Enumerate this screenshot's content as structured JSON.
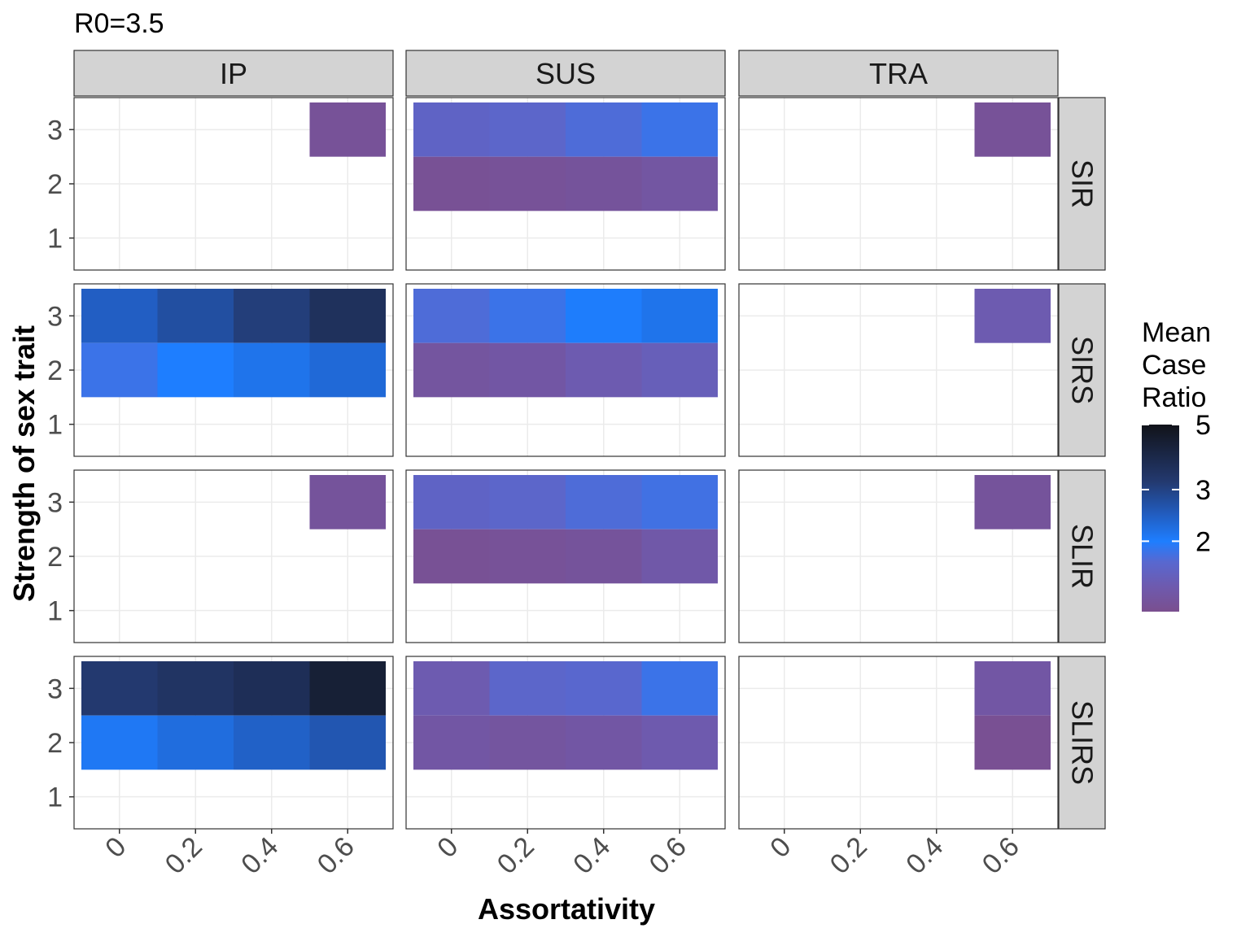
{
  "chart_data": {
    "type": "heatmap",
    "title": "R0=3.5",
    "xlabel": "Assortativity",
    "ylabel": "Strength of sex trait",
    "x_ticks": [
      "0",
      "0.2",
      "0.4",
      "0.6"
    ],
    "y_ticks": [
      "1",
      "2",
      "3"
    ],
    "x_values": [
      0,
      0.2,
      0.4,
      0.6
    ],
    "y_values": [
      1,
      2,
      3
    ],
    "col_facets": [
      "IP",
      "SUS",
      "TRA"
    ],
    "row_facets": [
      "SIR",
      "SIRS",
      "SLIR",
      "SLIRS"
    ],
    "legend": {
      "title": "Mean Case Ratio",
      "title_lines": [
        "Mean",
        "Case",
        "Ratio"
      ],
      "tick_labels": [
        "5",
        "3",
        "2"
      ],
      "tick_values": [
        5,
        3,
        2
      ],
      "range": [
        1.15,
        5
      ],
      "colors": [
        "#7a4f8f",
        "#6e5aae",
        "#5868d0",
        "#1e7eff",
        "#225bbc",
        "#23396f",
        "#111319"
      ],
      "color_stops": [
        1.15,
        1.4,
        1.7,
        2.0,
        2.5,
        3.2,
        5.0
      ]
    },
    "cells": {
      "IP": {
        "SIR": [
          [
            0.6,
            3,
            1.22
          ]
        ],
        "SIRS": [
          [
            0,
            3,
            2.45
          ],
          [
            0.2,
            3,
            2.75
          ],
          [
            0.4,
            3,
            3.1
          ],
          [
            0.6,
            3,
            3.6
          ],
          [
            0,
            2,
            1.85
          ],
          [
            0.2,
            2,
            2.0
          ],
          [
            0.4,
            2,
            2.15
          ],
          [
            0.6,
            2,
            2.3
          ]
        ],
        "SLIR": [
          [
            0.6,
            3,
            1.25
          ]
        ],
        "SLIRS": [
          [
            0,
            3,
            3.2
          ],
          [
            0.2,
            3,
            3.45
          ],
          [
            0.4,
            3,
            3.7
          ],
          [
            0.6,
            3,
            4.4
          ],
          [
            0,
            2,
            2.08
          ],
          [
            0.2,
            2,
            2.25
          ],
          [
            0.4,
            2,
            2.42
          ],
          [
            0.6,
            2,
            2.6
          ]
        ]
      },
      "SUS": {
        "SIR": [
          [
            0,
            3,
            1.6
          ],
          [
            0.2,
            3,
            1.65
          ],
          [
            0.4,
            3,
            1.75
          ],
          [
            0.6,
            3,
            1.85
          ],
          [
            0,
            2,
            1.2
          ],
          [
            0.2,
            2,
            1.22
          ],
          [
            0.4,
            2,
            1.25
          ],
          [
            0.6,
            2,
            1.3
          ]
        ],
        "SIRS": [
          [
            0,
            3,
            1.75
          ],
          [
            0.2,
            3,
            1.85
          ],
          [
            0.4,
            3,
            2.02
          ],
          [
            0.6,
            3,
            2.15
          ],
          [
            0,
            2,
            1.28
          ],
          [
            0.2,
            2,
            1.32
          ],
          [
            0.4,
            2,
            1.42
          ],
          [
            0.6,
            2,
            1.5
          ]
        ],
        "SLIR": [
          [
            0,
            3,
            1.6
          ],
          [
            0.2,
            3,
            1.65
          ],
          [
            0.4,
            3,
            1.75
          ],
          [
            0.6,
            3,
            1.82
          ],
          [
            0,
            2,
            1.2
          ],
          [
            0.2,
            2,
            1.22
          ],
          [
            0.4,
            2,
            1.25
          ],
          [
            0.6,
            2,
            1.35
          ]
        ],
        "SLIRS": [
          [
            0,
            3,
            1.42
          ],
          [
            0.2,
            3,
            1.65
          ],
          [
            0.4,
            3,
            1.68
          ],
          [
            0.6,
            3,
            1.85
          ],
          [
            0,
            2,
            1.32
          ],
          [
            0.2,
            2,
            1.28
          ],
          [
            0.4,
            2,
            1.32
          ],
          [
            0.6,
            2,
            1.4
          ]
        ]
      },
      "TRA": {
        "SIR": [
          [
            0.6,
            3,
            1.22
          ]
        ],
        "SIRS": [
          [
            0.6,
            3,
            1.42
          ]
        ],
        "SLIR": [
          [
            0.6,
            3,
            1.25
          ]
        ],
        "SLIRS": [
          [
            0.6,
            3,
            1.32
          ],
          [
            0.6,
            2,
            1.18
          ]
        ]
      }
    },
    "grid": true,
    "legend_position": "right"
  }
}
